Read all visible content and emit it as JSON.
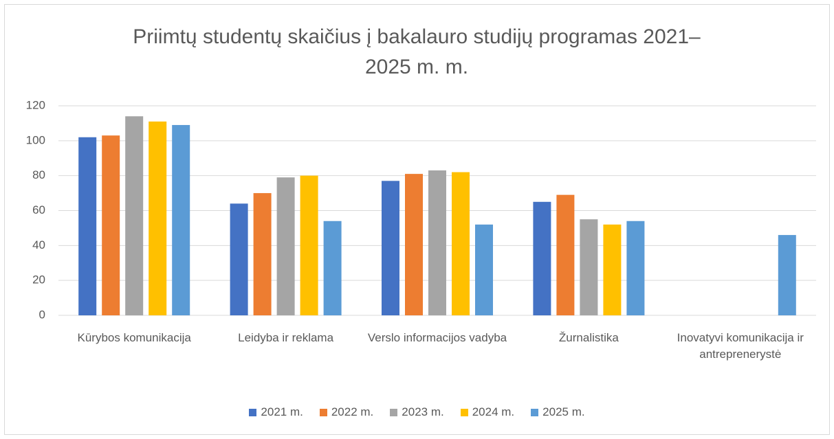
{
  "chart_data": {
    "type": "bar",
    "title": "Priimtų studentų skaičius į bakalauro studijų programas 2021–2025 m. m.",
    "categories": [
      "Kūrybos komunikacija",
      "Leidyba ir reklama",
      "Verslo informacijos vadyba",
      "Žurnalistika",
      "Inovatyvi komunikacija ir antreprenerystė"
    ],
    "series": [
      {
        "name": "2021 m.",
        "color": "#4472c4",
        "values": [
          102,
          64,
          77,
          65,
          null
        ]
      },
      {
        "name": "2022 m.",
        "color": "#ed7d31",
        "values": [
          103,
          70,
          81,
          69,
          null
        ]
      },
      {
        "name": "2023 m.",
        "color": "#a5a5a5",
        "values": [
          114,
          79,
          83,
          55,
          null
        ]
      },
      {
        "name": "2024 m.",
        "color": "#ffc000",
        "values": [
          111,
          80,
          82,
          52,
          null
        ]
      },
      {
        "name": "2025 m.",
        "color": "#5b9bd5",
        "values": [
          109,
          54,
          52,
          54,
          46
        ]
      }
    ],
    "ylim": [
      0,
      120
    ],
    "yticks": [
      0,
      20,
      40,
      60,
      80,
      100,
      120
    ],
    "grid": true,
    "legend": "bottom"
  }
}
